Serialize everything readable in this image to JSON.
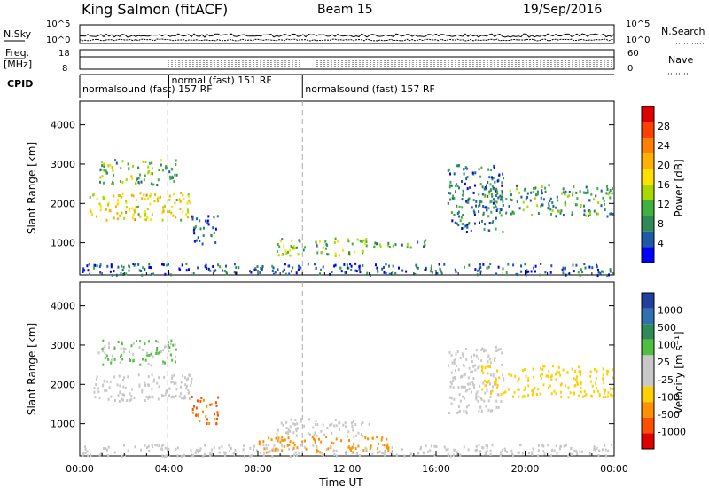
{
  "header": {
    "title": "King Salmon (fitACF)",
    "beam": "Beam 15",
    "date": "19/Sep/2016"
  },
  "status_rows": {
    "nsky_label": "N.Sky",
    "nsearch_label": "N.Search",
    "nsky_ticks": [
      "10^5",
      "10^0"
    ],
    "nsearch_ticks": [
      "10^5",
      "10^0"
    ],
    "freq_label_line1": "Freq.",
    "freq_label_line2": "[MHz]",
    "freq_ticks": [
      "18",
      "8"
    ],
    "nave_label": "Nave",
    "nave_ticks": [
      "60",
      "0"
    ],
    "cpid_label": "CPID",
    "cpid_segments": [
      {
        "label": "normalsound (fast) 157 RF",
        "start_h": 0,
        "end_h": 4
      },
      {
        "label": "normal (fast) 151 RF",
        "start_h": 4,
        "end_h": 10
      },
      {
        "label": "normalsound (fast) 157 RF",
        "start_h": 10,
        "end_h": 24
      }
    ]
  },
  "axes": {
    "ylabel": "Slant Range [km]",
    "xlabel": "Time UT",
    "x_ticks": [
      "00:00",
      "04:00",
      "08:00",
      "12:00",
      "16:00",
      "20:00",
      "00:00"
    ],
    "y_ticks": [
      "1000",
      "2000",
      "3000",
      "4000"
    ]
  },
  "colorbars": {
    "power": {
      "label": "Power [dB]",
      "ticks": [
        "28",
        "24",
        "20",
        "16",
        "12",
        "8",
        "4"
      ],
      "colors": [
        "#e00000",
        "#ff4000",
        "#ff8000",
        "#ffb000",
        "#ffe000",
        "#a8d800",
        "#40b040",
        "#2e8b57",
        "#1e5aa8",
        "#0000ff"
      ]
    },
    "velocity": {
      "label": "Velocity [m s⁻¹]",
      "ticks": [
        "1000",
        "500",
        "100",
        "25",
        "-25",
        "-100",
        "-500",
        "-1000"
      ],
      "colors": [
        "#2040a0",
        "#2e70b0",
        "#2e8b57",
        "#50c040",
        "#c8c8c8",
        "#c8c8c8",
        "#ffd000",
        "#ff9000",
        "#ff5000",
        "#e00000"
      ]
    }
  },
  "chart_data": [
    {
      "type": "heatmap",
      "title": "",
      "xlabel": "",
      "ylabel": "Slant Range [km]",
      "xlim": [
        0,
        24
      ],
      "ylim": [
        180,
        4600
      ],
      "colorbar_label": "Power [dB]",
      "regions": [
        {
          "x": [
            0.4,
            5.0
          ],
          "y": [
            1600,
            2300
          ],
          "value": 18
        },
        {
          "x": [
            0.8,
            4.4
          ],
          "y": [
            2500,
            3150
          ],
          "value": 12
        },
        {
          "x": [
            5.0,
            6.2
          ],
          "y": [
            1000,
            1750
          ],
          "value": 6
        },
        {
          "x": [
            8.8,
            13.0
          ],
          "y": [
            700,
            1150
          ],
          "value": 14
        },
        {
          "x": [
            13.0,
            15.5
          ],
          "y": [
            900,
            1100
          ],
          "value": 10
        },
        {
          "x": [
            16.5,
            19.0
          ],
          "y": [
            1300,
            3000
          ],
          "value": 8
        },
        {
          "x": [
            18.0,
            23.9
          ],
          "y": [
            1700,
            2500
          ],
          "value": 10
        },
        {
          "x": [
            0.0,
            23.9
          ],
          "y": [
            200,
            500
          ],
          "value": 6
        }
      ]
    },
    {
      "type": "heatmap",
      "title": "",
      "xlabel": "Time UT",
      "ylabel": "Slant Range [km]",
      "xlim": [
        0,
        24
      ],
      "ylim": [
        180,
        4600
      ],
      "colorbar_label": "Velocity [m s⁻¹]",
      "regions": [
        {
          "x": [
            0.4,
            5.0
          ],
          "y": [
            1600,
            2300
          ],
          "value": 0
        },
        {
          "x": [
            0.8,
            4.4
          ],
          "y": [
            2500,
            3150
          ],
          "value": 100
        },
        {
          "x": [
            5.0,
            6.2
          ],
          "y": [
            1000,
            1750
          ],
          "value": -200
        },
        {
          "x": [
            8.8,
            13.0
          ],
          "y": [
            700,
            1150
          ],
          "value": 0
        },
        {
          "x": [
            8.0,
            14.0
          ],
          "y": [
            300,
            700
          ],
          "value": -150
        },
        {
          "x": [
            16.5,
            19.0
          ],
          "y": [
            1300,
            3000
          ],
          "value": 60
        },
        {
          "x": [
            18.0,
            23.9
          ],
          "y": [
            1700,
            2500
          ],
          "value": -50
        },
        {
          "x": [
            0.0,
            23.9
          ],
          "y": [
            200,
            500
          ],
          "value": 30
        }
      ]
    }
  ]
}
